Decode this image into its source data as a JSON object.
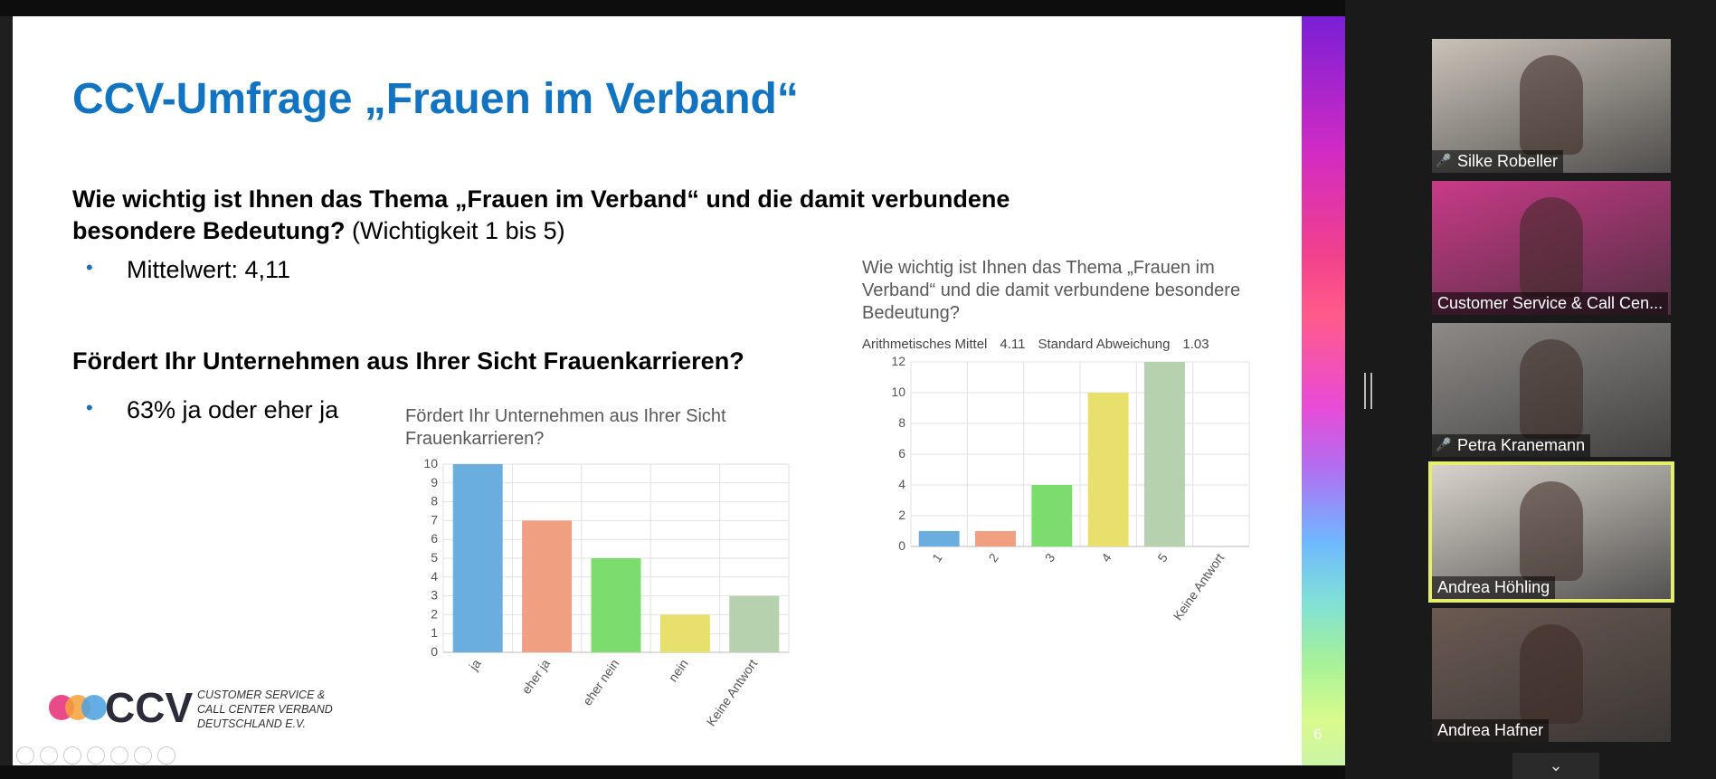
{
  "slide": {
    "title": "CCV-Umfrage „Frauen im Verband“",
    "question1_bold": "Wie wichtig ist Ihnen das Thema „Frauen im Verband“ und die damit verbundene besondere Bedeutung?",
    "question1_suffix": " (Wichtigkeit 1 bis 5)",
    "bullet1": "Mittelwert: 4,11",
    "question2": "Fördert Ihr Unternehmen aus Ihrer Sicht Frauenkarrieren?",
    "bullet2": "63% ja oder eher ja",
    "slide_number": "6",
    "logo_text_1": "CUSTOMER SERVICE &",
    "logo_text_2": "CALL CENTER VERBAND",
    "logo_text_3": "DEUTSCHLAND E.V.",
    "logo_mark": "CCV"
  },
  "chart_data": [
    {
      "type": "bar",
      "title": "Fördert Ihr Unternehmen aus Ihrer Sicht Frauenkarrieren?",
      "categories": [
        "ja",
        "eher ja",
        "eher nein",
        "nein",
        "Keine Antwort"
      ],
      "values": [
        10,
        7,
        5,
        2,
        3
      ],
      "colors": [
        "#6aaee0",
        "#f0a080",
        "#7ddc6e",
        "#e8e06c",
        "#b5d1ad"
      ],
      "ylim": [
        0,
        10
      ],
      "yticks": [
        "0",
        "1",
        "2",
        "3",
        "4",
        "5",
        "6",
        "7",
        "8",
        "9",
        "10"
      ],
      "grid": true
    },
    {
      "type": "bar",
      "title": "Wie wichtig ist Ihnen das Thema „Frauen im Verband“ und die damit verbundene besondere Bedeutung?",
      "stats_label_mean": "Arithmetisches Mittel",
      "stats_value_mean": "4.11",
      "stats_label_sd": "Standard Abweichung",
      "stats_value_sd": "1.03",
      "categories": [
        "1",
        "2",
        "3",
        "4",
        "5",
        "Keine Antwort"
      ],
      "values": [
        1,
        1,
        4,
        10,
        12,
        0
      ],
      "colors": [
        "#6aaee0",
        "#f0a080",
        "#7ddc6e",
        "#e8e06c",
        "#b5d1ad",
        "#cccccc"
      ],
      "ylim": [
        0,
        12
      ],
      "yticks": [
        "0",
        "2",
        "4",
        "6",
        "8",
        "10",
        "12"
      ],
      "grid": true
    }
  ],
  "participants": [
    {
      "name": "Silke Robeller",
      "muted": true,
      "active": false,
      "bg": "#c9c2b8"
    },
    {
      "name": "Customer Service & Call Cen...",
      "muted": false,
      "active": false,
      "bg": "#c93a88"
    },
    {
      "name": "Petra Kranemann",
      "muted": true,
      "active": false,
      "bg": "#8d8a86"
    },
    {
      "name": "Andrea Höhling",
      "muted": false,
      "active": true,
      "bg": "#d8d3cb"
    },
    {
      "name": "Andrea Hafner",
      "muted": false,
      "active": false,
      "bg": "#6b5a52"
    }
  ],
  "panel": {
    "scroll_down_icon": "chevron-down-icon"
  }
}
